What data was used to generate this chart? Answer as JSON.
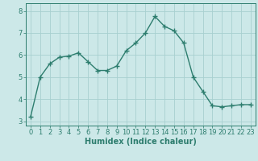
{
  "x": [
    0,
    1,
    2,
    3,
    4,
    5,
    6,
    7,
    8,
    9,
    10,
    11,
    12,
    13,
    14,
    15,
    16,
    17,
    18,
    19,
    20,
    21,
    22,
    23
  ],
  "y": [
    3.2,
    5.0,
    5.6,
    5.9,
    5.95,
    6.1,
    5.7,
    5.3,
    5.3,
    5.5,
    6.2,
    6.55,
    7.0,
    7.75,
    7.3,
    7.1,
    6.55,
    5.0,
    4.35,
    3.7,
    3.65,
    3.7,
    3.75,
    3.75
  ],
  "line_color": "#2d7d6e",
  "marker": "+",
  "marker_size": 4,
  "bg_color": "#cce8e8",
  "grid_color": "#a8d0d0",
  "xlabel": "Humidex (Indice chaleur)",
  "ylim": [
    2.8,
    8.35
  ],
  "xlim": [
    -0.5,
    23.5
  ],
  "yticks": [
    3,
    4,
    5,
    6,
    7,
    8
  ],
  "xticks": [
    0,
    1,
    2,
    3,
    4,
    5,
    6,
    7,
    8,
    9,
    10,
    11,
    12,
    13,
    14,
    15,
    16,
    17,
    18,
    19,
    20,
    21,
    22,
    23
  ],
  "tick_color": "#2d7d6e",
  "label_color": "#2d7d6e",
  "font_size_xlabel": 7,
  "font_size_ticks": 6,
  "line_width": 1.0
}
